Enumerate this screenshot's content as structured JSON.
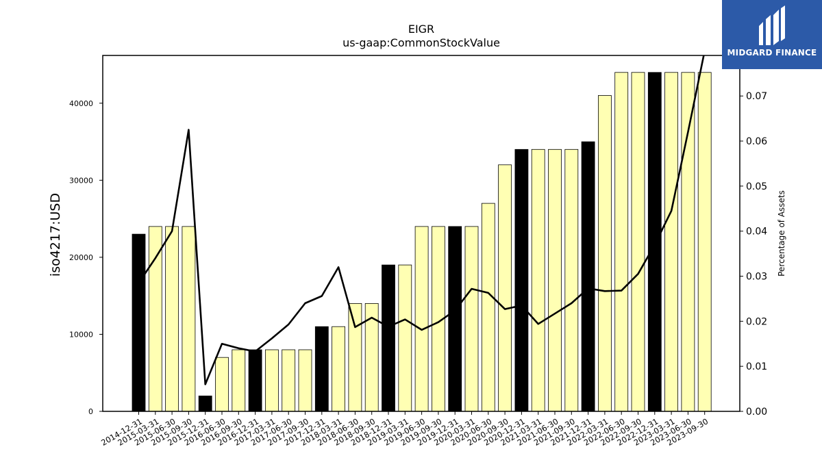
{
  "chart_data": {
    "type": "bar",
    "title": "EIGR",
    "subtitle": "us-gaap:CommonStockValue",
    "ylabel": "iso4217:USD",
    "y2label": "Percentage of Assets",
    "ylim": [
      0,
      46200
    ],
    "y2lim": [
      0,
      0.079
    ],
    "yticks": [
      0,
      10000,
      20000,
      30000,
      40000
    ],
    "y2ticks": [
      "0.00",
      "0.01",
      "0.02",
      "0.03",
      "0.04",
      "0.05",
      "0.06",
      "0.07"
    ],
    "categories": [
      "2014-12-31",
      "2015-03-31",
      "2015-06-30",
      "2015-09-30",
      "2015-12-31",
      "2016-06-30",
      "2016-09-30",
      "2016-12-31",
      "2017-03-31",
      "2017-06-30",
      "2017-09-30",
      "2017-12-31",
      "2018-03-31",
      "2018-06-30",
      "2018-09-30",
      "2018-12-31",
      "2019-03-31",
      "2019-06-30",
      "2019-09-30",
      "2019-12-31",
      "2020-03-31",
      "2020-06-30",
      "2020-09-30",
      "2020-12-31",
      "2021-03-31",
      "2021-06-30",
      "2021-09-30",
      "2021-12-31",
      "2022-03-31",
      "2022-06-30",
      "2022-09-30",
      "2022-12-31",
      "2023-03-31",
      "2023-06-30",
      "2023-09-30"
    ],
    "series": [
      {
        "type": "bar",
        "values": [
          23000,
          24000,
          24000,
          24000,
          2000,
          7000,
          8000,
          8000,
          8000,
          8000,
          8000,
          11000,
          11000,
          14000,
          14000,
          19000,
          19000,
          24000,
          24000,
          24000,
          24000,
          27000,
          32000,
          34000,
          34000,
          34000,
          34000,
          35000,
          41000,
          44000,
          44000,
          44000,
          44000,
          44000,
          44000
        ],
        "year_end_color": "#000000",
        "quarter_color": "#ffffb3"
      },
      {
        "type": "line",
        "axis": "right",
        "color": "#000000",
        "values": [
          0.0285,
          0.034,
          0.04,
          0.0625,
          0.006,
          0.015,
          0.014,
          0.0133,
          0.0162,
          0.0193,
          0.024,
          0.0256,
          0.032,
          0.0187,
          0.0208,
          0.0188,
          0.0204,
          0.0181,
          0.0198,
          0.0224,
          0.0272,
          0.0263,
          0.0227,
          0.0235,
          0.0194,
          0.0217,
          0.024,
          0.0273,
          0.0267,
          0.0268,
          0.0305,
          0.037,
          0.0445,
          0.062,
          0.08
        ]
      }
    ],
    "grid": false,
    "legend": "none"
  },
  "logo": {
    "text": "MIDGARD FINANCE",
    "bg_color": "#2c5aa8"
  }
}
